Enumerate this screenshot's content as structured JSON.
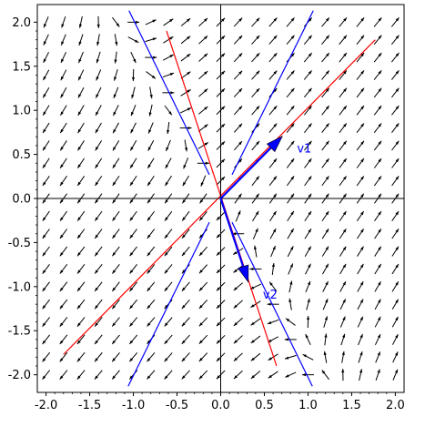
{
  "chart_data": {
    "type": "vector-field",
    "xlim": [
      -2.1,
      2.1
    ],
    "ylim": [
      -2.2,
      2.2
    ],
    "x_ticks": [
      "-2.0",
      "-1.5",
      "-1.0",
      "-0.5",
      "0.0",
      "0.5",
      "1.0",
      "1.5",
      "2.0"
    ],
    "x_tick_values": [
      -2.0,
      -1.5,
      -1.0,
      -0.5,
      0.0,
      0.5,
      1.0,
      1.5,
      2.0
    ],
    "y_ticks": [
      "-2.0",
      "-1.5",
      "-1.0",
      "-0.5",
      "0.0",
      "0.5",
      "1.0",
      "1.5",
      "2.0"
    ],
    "y_tick_values": [
      -2.0,
      -1.5,
      -1.0,
      -0.5,
      0.0,
      0.5,
      1.0,
      1.5,
      2.0
    ],
    "field": {
      "matrix": [
        [
          0.586,
          0.414
        ],
        [
          0.828,
          0.414
        ]
      ],
      "grid_spacing": 0.2,
      "grid_range": [
        -2.0,
        2.0
      ],
      "arrow_color": "#000000"
    },
    "lines": [
      {
        "color": "#ff0000",
        "points": [
          [
            -1.8,
            -1.77
          ],
          [
            1.77,
            1.8
          ]
        ]
      },
      {
        "color": "#ff0000",
        "points": [
          [
            -0.62,
            1.9
          ],
          [
            0.64,
            -1.9
          ]
        ]
      },
      {
        "color": "#0000ff",
        "points": [
          [
            -1.05,
            2.13
          ],
          [
            -0.13,
            0.27
          ]
        ]
      },
      {
        "color": "#0000ff",
        "points": [
          [
            0.13,
            -0.27
          ],
          [
            1.05,
            -2.13
          ]
        ]
      },
      {
        "color": "#0000ff",
        "points": [
          [
            0.13,
            0.27
          ],
          [
            1.06,
            2.13
          ]
        ]
      },
      {
        "color": "#0000ff",
        "points": [
          [
            -0.13,
            -0.27
          ],
          [
            -1.06,
            -2.13
          ]
        ]
      }
    ],
    "vectors": [
      {
        "label": "v1",
        "to": [
          0.707,
          0.707
        ],
        "color": "#0000ff"
      },
      {
        "label": "v2",
        "to": [
          0.316,
          -0.949
        ],
        "color": "#0000ff"
      }
    ],
    "vector_label_color": "#0000ff",
    "grid": false
  }
}
